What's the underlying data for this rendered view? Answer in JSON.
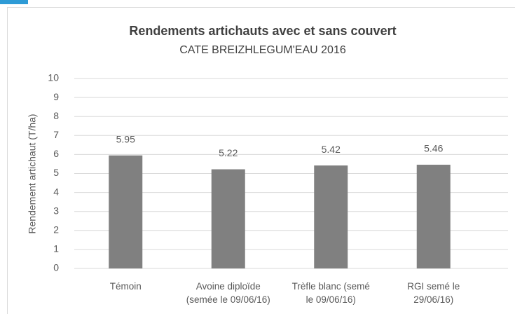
{
  "chart_data": {
    "type": "bar",
    "title": "Rendements artichauts avec et sans couvert",
    "subtitle": "CATE BREIZHLEGUM'EAU 2016",
    "y_label": "Rendement artichaut (T/ha)",
    "categories": [
      "Témoin",
      "Avoine diploïde\n(semée le 09/06/16)",
      "Trèfle blanc (semé\nle 09/06/16)",
      "RGI semé le\n29/06/16)"
    ],
    "values": [
      5.95,
      5.22,
      5.42,
      5.46
    ],
    "color": "#808080",
    "ylim": [
      0,
      10
    ],
    "yticks": [
      0,
      1,
      2,
      3,
      4,
      5,
      6,
      7,
      8,
      9,
      10
    ],
    "grid": true
  }
}
